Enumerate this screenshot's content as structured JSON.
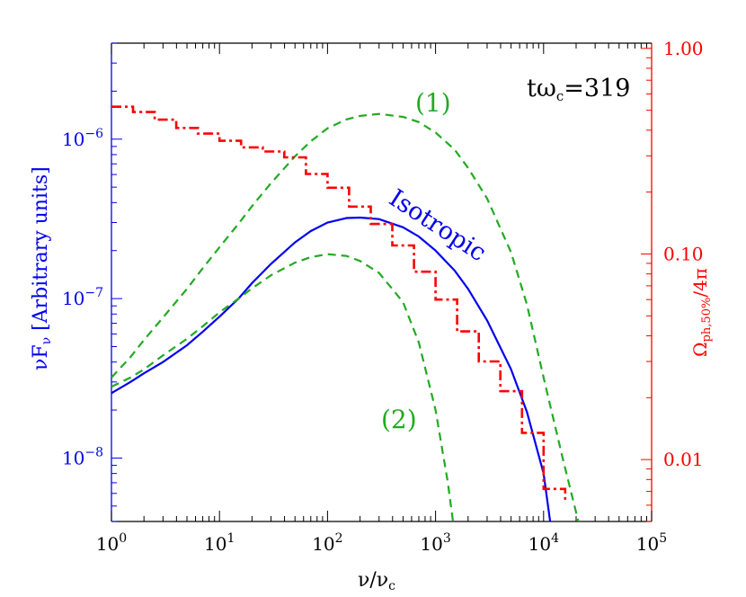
{
  "chart_data": {
    "type": "line",
    "title": "",
    "xlabel": "ν/ν",
    "xlabel_sub": "c",
    "xscale": "log",
    "xlim": [
      1,
      100000
    ],
    "x_ticks": [
      {
        "value": 1,
        "base": "10",
        "exp": "0"
      },
      {
        "value": 10,
        "base": "10",
        "exp": "1"
      },
      {
        "value": 100,
        "base": "10",
        "exp": "2"
      },
      {
        "value": 1000,
        "base": "10",
        "exp": "3"
      },
      {
        "value": 10000,
        "base": "10",
        "exp": "4"
      },
      {
        "value": 100000,
        "base": "10",
        "exp": "5"
      }
    ],
    "y_left": {
      "label": "νF",
      "label_sub": "ν",
      "label_rest": " [Arbitrary units]",
      "scale": "log",
      "lim": [
        4e-09,
        4e-06
      ],
      "color": "#0000ee",
      "ticks": [
        {
          "value": 1e-08,
          "base": "10",
          "exp": "−8"
        },
        {
          "value": 1e-07,
          "base": "10",
          "exp": "−7"
        },
        {
          "value": 1e-06,
          "base": "10",
          "exp": "−6"
        }
      ]
    },
    "y_right": {
      "label": "Ω",
      "label_sub": "ph,50%",
      "label_rest": "/4π",
      "scale": "log",
      "lim": [
        0.005,
        1.06
      ],
      "color": "#ff0000",
      "ticks": [
        {
          "value": 0.01,
          "label": "0.01"
        },
        {
          "value": 0.1,
          "label": "0.10"
        },
        {
          "value": 1.0,
          "label": "1.00"
        }
      ]
    },
    "series": [
      {
        "axis": "left",
        "color": "#0000ee",
        "style": "solid",
        "x": [
          1,
          1.5,
          2,
          3,
          5,
          7,
          10,
          15,
          20,
          30,
          50,
          70,
          100,
          150,
          200,
          300,
          500,
          700,
          1000,
          1500,
          2000,
          3000,
          5000,
          7000,
          10000,
          11500
        ],
        "y": [
          2.55e-08,
          3e-08,
          3.4e-08,
          4e-08,
          5.1e-08,
          6.2e-08,
          7.7e-08,
          1e-07,
          1.25e-07,
          1.65e-07,
          2.25e-07,
          2.65e-07,
          3e-07,
          3.2e-07,
          3.22e-07,
          3.15e-07,
          2.8e-07,
          2.45e-07,
          2e-07,
          1.5e-07,
          1.15e-07,
          7.3e-08,
          3.6e-08,
          1.95e-08,
          8e-09,
          4e-09
        ]
      },
      {
        "axis": "left",
        "color": "#22aa22",
        "style": "dashed",
        "x": [
          1,
          1.5,
          2,
          3,
          5,
          7,
          10,
          15,
          20,
          30,
          50,
          70,
          100,
          150,
          200,
          300,
          500,
          700,
          1000,
          1500,
          2000,
          3000,
          5000,
          7000,
          10000,
          15000,
          21000
        ],
        "y": [
          3.2e-08,
          4.3e-08,
          5.5e-08,
          7.6e-08,
          1.15e-07,
          1.55e-07,
          2.1e-07,
          2.95e-07,
          3.8e-07,
          5.3e-07,
          7.8e-07,
          9.7e-07,
          1.17e-06,
          1.33e-06,
          1.4e-06,
          1.44e-06,
          1.38e-06,
          1.28e-06,
          1.1e-06,
          8.6e-07,
          6.6e-07,
          4.25e-07,
          1.95e-07,
          9.2e-08,
          3.2e-08,
          1e-08,
          4e-09
        ]
      },
      {
        "axis": "left",
        "color": "#22aa22",
        "style": "dashed",
        "x": [
          1,
          1.5,
          2,
          3,
          5,
          7,
          10,
          15,
          20,
          30,
          50,
          70,
          100,
          150,
          200,
          300,
          500,
          700,
          1000,
          1300,
          1450
        ],
        "y": [
          2.8e-08,
          3.2e-08,
          3.6e-08,
          4.4e-08,
          5.6e-08,
          6.7e-08,
          8.2e-08,
          1e-07,
          1.16e-07,
          1.4e-07,
          1.68e-07,
          1.82e-07,
          1.9e-07,
          1.85e-07,
          1.72e-07,
          1.45e-07,
          9.5e-08,
          5.3e-08,
          2e-08,
          7e-09,
          4e-09
        ]
      },
      {
        "axis": "right",
        "color": "#ff0000",
        "style": "dashdot",
        "step": true,
        "edges": [
          1,
          1.585,
          2.512,
          3.981,
          6.31,
          10,
          15.85,
          25.12,
          39.81,
          63.1,
          100,
          158.5,
          251.2,
          398.1,
          631,
          1000,
          1585,
          2512,
          3981,
          6310,
          10000,
          15850
        ],
        "values": [
          0.52,
          0.49,
          0.45,
          0.41,
          0.385,
          0.355,
          0.33,
          0.315,
          0.295,
          0.245,
          0.21,
          0.17,
          0.14,
          0.11,
          0.082,
          0.06,
          0.042,
          0.03,
          0.0215,
          0.0135,
          0.0072,
          0.0062
        ]
      }
    ],
    "annotations": [
      {
        "text": "(1)",
        "color": "#22aa22"
      },
      {
        "text": "(2)",
        "color": "#22aa22"
      },
      {
        "text": "Isotropic",
        "color": "#0000ee"
      },
      {
        "text": "tω",
        "sub": "c",
        "rest": "=319",
        "color": "#000000"
      }
    ]
  }
}
